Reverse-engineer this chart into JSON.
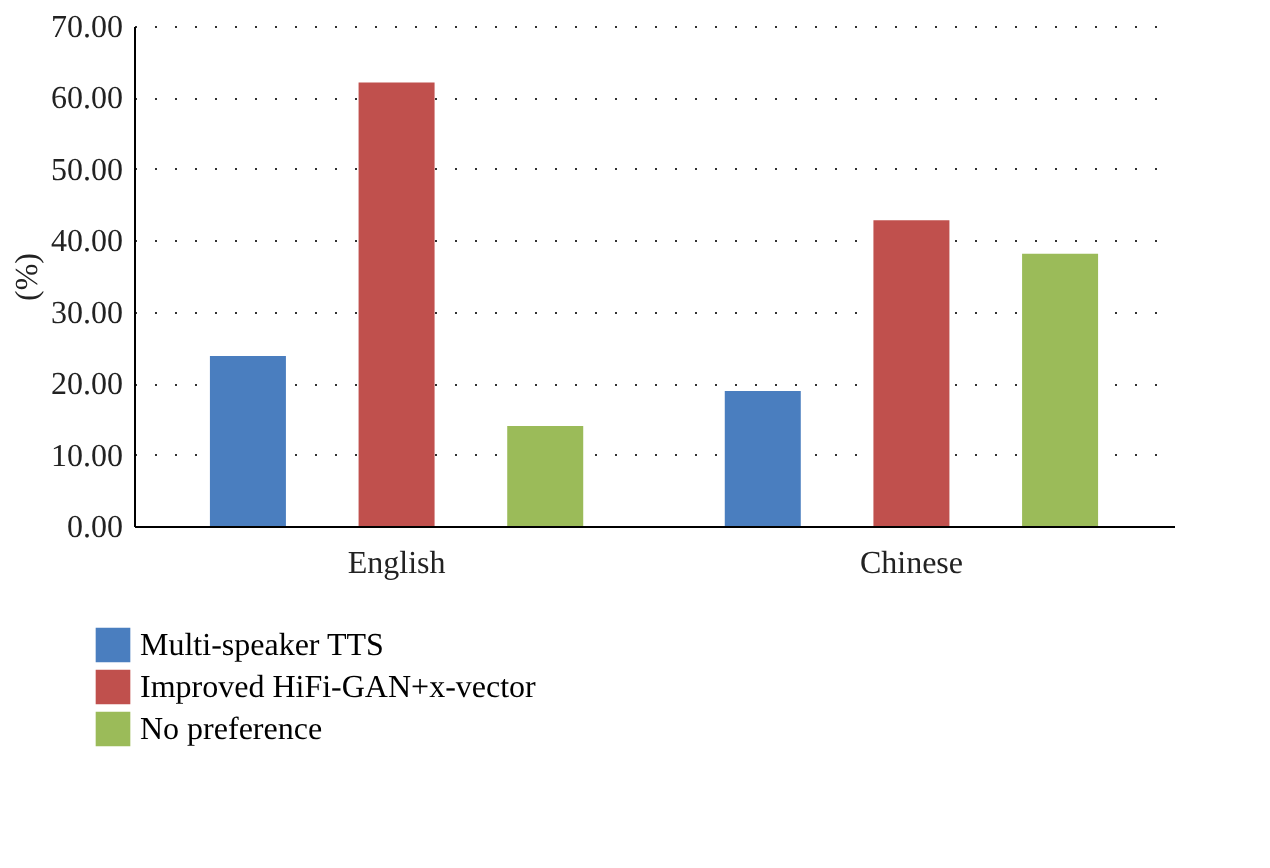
{
  "chart_data": {
    "type": "bar",
    "ylabel": "(%)",
    "categories": [
      "English",
      "Chinese"
    ],
    "series": [
      {
        "name": "Multi-speaker TTS",
        "color": "#4a7ebf",
        "values": [
          23.8,
          18.9
        ]
      },
      {
        "name": "Improved HiFi-GAN+x-vector",
        "color": "#c0504d",
        "values": [
          62.1,
          42.8
        ]
      },
      {
        "name": "No preference",
        "color": "#9bbb59",
        "values": [
          14.0,
          38.1
        ]
      }
    ],
    "ylim": [
      0,
      70
    ],
    "yticks": [
      {
        "value": 0,
        "label": "0.00"
      },
      {
        "value": 10,
        "label": "10.00"
      },
      {
        "value": 20,
        "label": "20.00"
      },
      {
        "value": 30,
        "label": "30.00"
      },
      {
        "value": 40,
        "label": "40.00"
      },
      {
        "value": 50,
        "label": "50.00"
      },
      {
        "value": 60,
        "label": "60.00"
      },
      {
        "value": 70,
        "label": "70.00"
      }
    ],
    "grid": "y",
    "legend": "bottom left"
  }
}
